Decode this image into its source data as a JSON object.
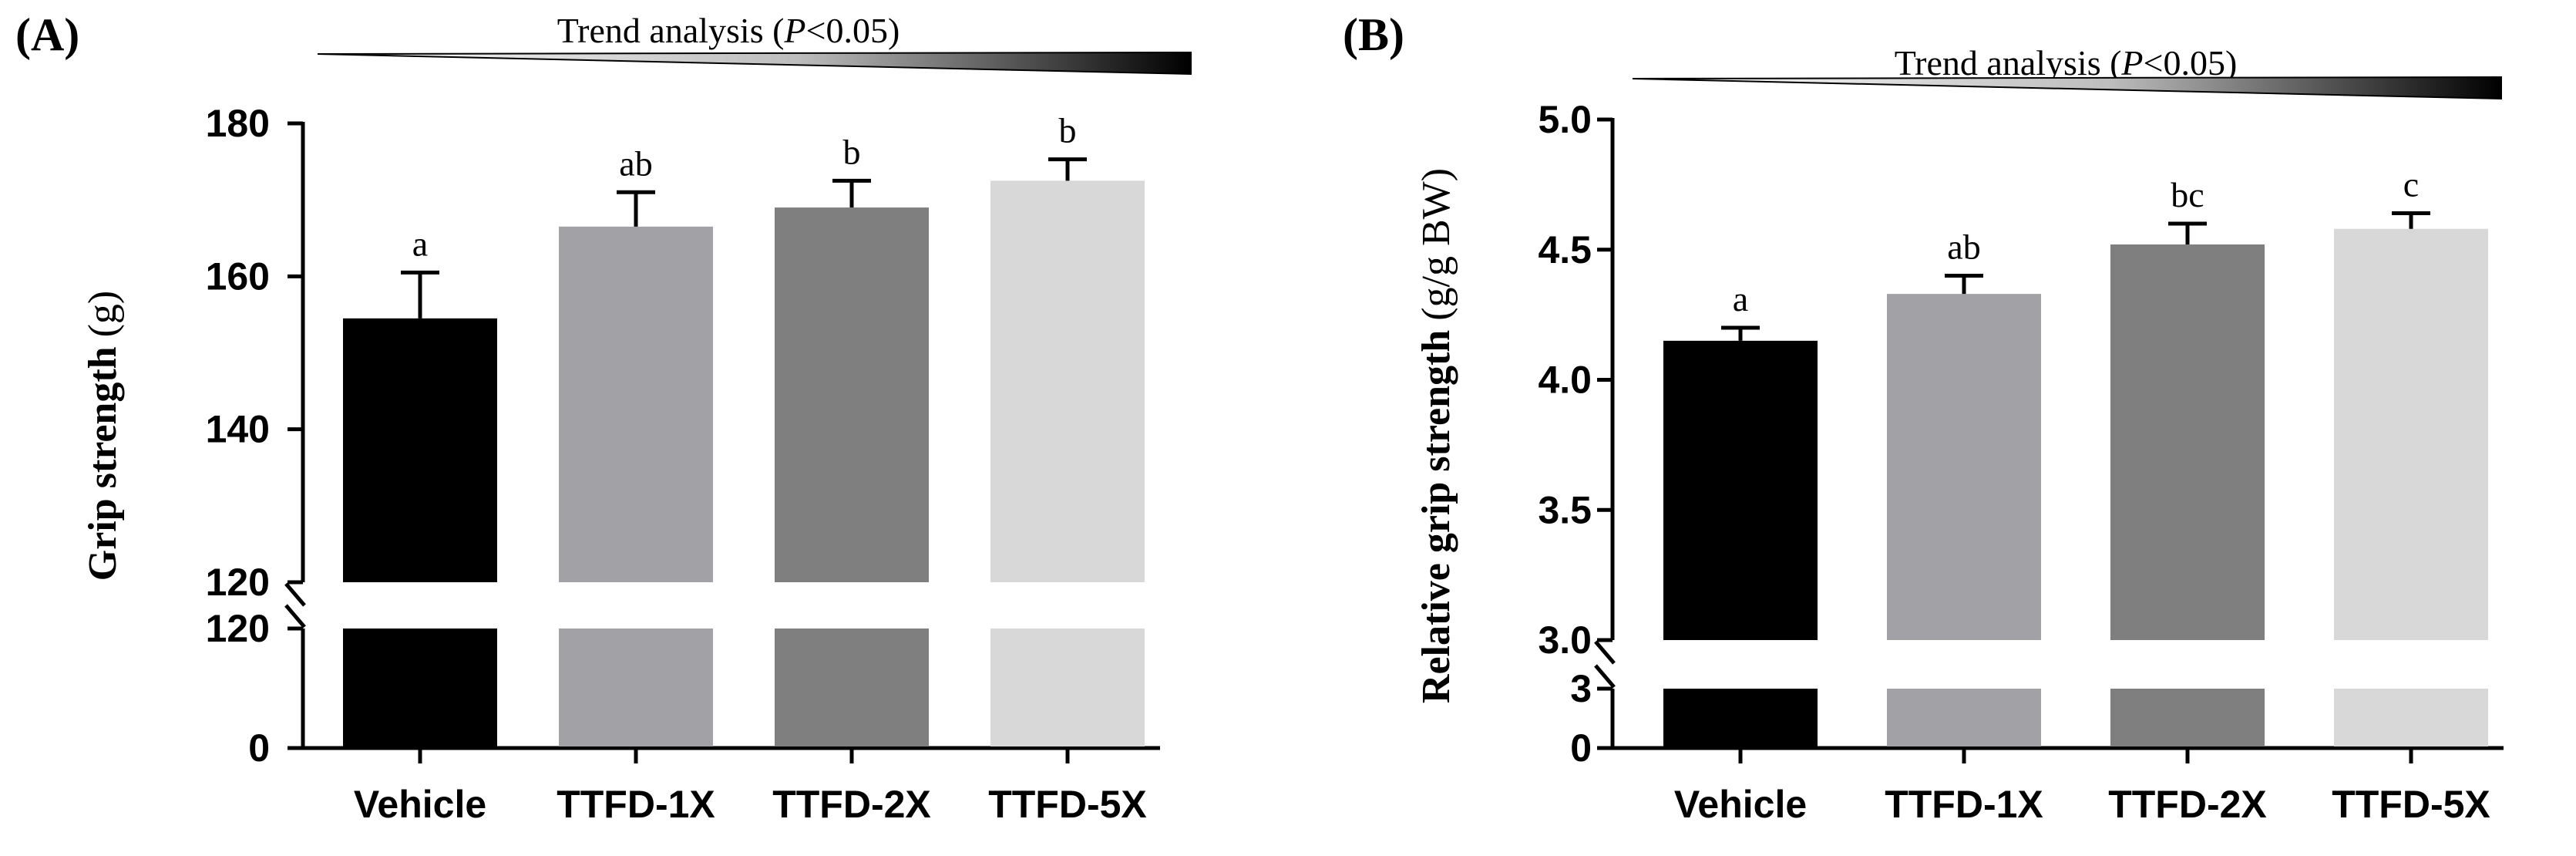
{
  "chart_data": [
    {
      "type": "bar",
      "panel_label": "(A)",
      "trend": {
        "prefix": "Trend analysis (",
        "p_symbol": "P",
        "suffix": "<0.05)"
      },
      "title": "",
      "xlabel": "",
      "ylabel": "Grip strength",
      "ylabel_unit": "(g)",
      "categories": [
        "Vehicle",
        "TTFD-1X",
        "TTFD-2X",
        "TTFD-5X"
      ],
      "values": [
        154.5,
        166.5,
        169.0,
        172.5
      ],
      "errors": [
        6.0,
        4.5,
        3.5,
        2.8
      ],
      "significance": [
        "a",
        "ab",
        "b",
        "b"
      ],
      "colors": [
        "#000000",
        "#a2a1a6",
        "#7f7f7f",
        "#d8d8d8"
      ],
      "ylim_upper": [
        120,
        180
      ],
      "upper_ticks": [
        "120",
        "140",
        "160",
        "180"
      ],
      "ylim_lower": [
        0,
        120
      ],
      "lower_ticks": [
        "0",
        "120"
      ],
      "axis_break": true
    },
    {
      "type": "bar",
      "panel_label": "(B)",
      "trend": {
        "prefix": "Trend analysis (",
        "p_symbol": "P",
        "suffix": "<0.05)"
      },
      "title": "",
      "xlabel": "",
      "ylabel": "Relative grip strength",
      "ylabel_unit": "(g/g BW)",
      "categories": [
        "Vehicle",
        "TTFD-1X",
        "TTFD-2X",
        "TTFD-5X"
      ],
      "values": [
        4.15,
        4.33,
        4.52,
        4.58
      ],
      "errors": [
        0.05,
        0.07,
        0.08,
        0.06
      ],
      "significance": [
        "a",
        "ab",
        "bc",
        "c"
      ],
      "colors": [
        "#000000",
        "#a2a1a6",
        "#7f7f7f",
        "#d8d8d8"
      ],
      "ylim_upper": [
        3.0,
        5.0
      ],
      "upper_ticks": [
        "3.0",
        "3.5",
        "4.0",
        "4.5",
        "5.0"
      ],
      "ylim_lower": [
        0,
        3
      ],
      "lower_ticks": [
        "0",
        "3"
      ],
      "axis_break": true
    }
  ]
}
